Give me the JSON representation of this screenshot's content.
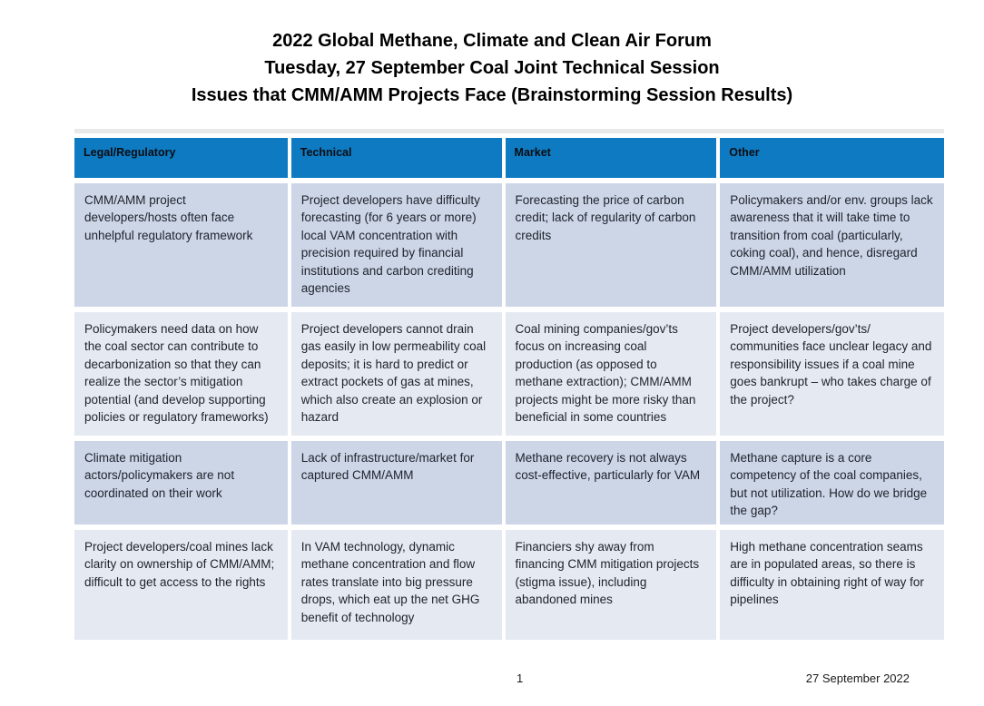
{
  "title": {
    "line1": "2022 Global Methane, Climate and Clean Air Forum",
    "line2": "Tuesday, 27 September Coal Joint Technical Session",
    "line3": "Issues that CMM/AMM Projects Face (Brainstorming Session Results)"
  },
  "table": {
    "headers": [
      "Legal/Regulatory",
      "Technical",
      "Market",
      "Other"
    ],
    "rows": [
      [
        "CMM/AMM project developers/hosts often face unhelpful regulatory framework",
        "Project developers have difficulty forecasting (for 6 years or more) local VAM concentration with precision required by financial institutions and carbon crediting agencies",
        "Forecasting the price of carbon credit; lack of regularity of carbon credits",
        "Policymakers and/or env. groups lack awareness that it will take time to transition from coal (particularly, coking coal), and hence, disregard CMM/AMM utilization"
      ],
      [
        "Policymakers need data on how the coal sector can contribute to decarbonization so that they can realize the sector’s mitigation potential (and develop supporting policies or regulatory frameworks)",
        "Project developers cannot drain gas easily in low permeability coal deposits; it is hard to predict or extract pockets of gas at mines, which also create an explosion or hazard",
        "Coal mining companies/gov’ts focus on increasing coal production (as opposed to methane extraction); CMM/AMM projects might be more risky than beneficial in some countries",
        "Project developers/gov’ts/ communities face unclear legacy and responsibility issues if a coal mine goes bankrupt – who takes charge of the project?"
      ],
      [
        "Climate mitigation actors/policymakers are not coordinated on their work",
        "Lack of infrastructure/market for captured CMM/AMM",
        "Methane recovery is not always cost-effective, particularly for VAM",
        "Methane capture is a core competency of the coal companies, but not utilization. How do we bridge the gap?"
      ],
      [
        "Project developers/coal mines lack clarity on ownership of CMM/AMM; difficult to get access to the rights",
        "In VAM technology, dynamic methane concentration and flow rates translate into big pressure drops, which eat up the net GHG benefit of technology",
        "Financiers shy away from financing CMM mitigation projects (stigma issue), including abandoned mines",
        "High methane concentration seams are in populated areas, so there is difficulty in obtaining right of way for pipelines"
      ]
    ]
  },
  "footer": {
    "page_number": "1",
    "date": "27 September 2022"
  },
  "colors": {
    "header_background": "#0e7ac2",
    "header_text": "#0a0d12",
    "row_dark": "#ccd6e7",
    "row_light": "#e5e9f2",
    "body_text": "#20242e",
    "page_background": "#ffffff"
  }
}
